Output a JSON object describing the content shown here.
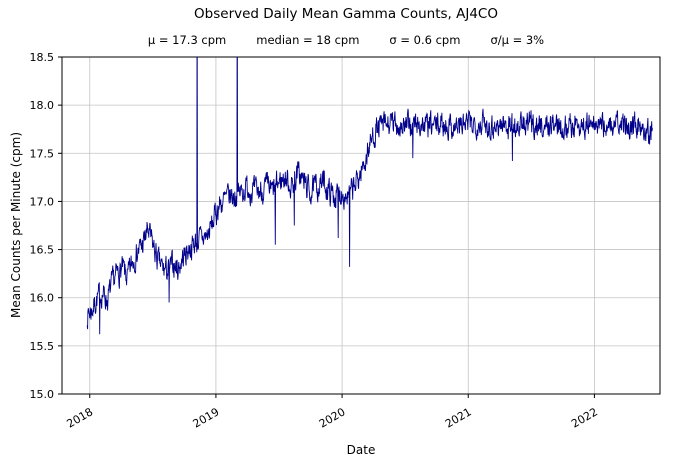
{
  "stats": {
    "mu": "μ = 17.3 cpm",
    "median": "median = 18 cpm",
    "sigma": "σ = 0.6 cpm",
    "ratio": "σ/μ = 3%"
  },
  "chart_data": {
    "type": "line",
    "title": "Observed Daily Mean Gamma Counts, AJ4CO",
    "subtitle": "μ = 17.3 cpm     median = 18 cpm     σ = 0.6 cpm     σ/μ = 3%",
    "xlabel": "Date",
    "ylabel": "Mean Counts per Minute (cpm)",
    "xlim": [
      2017.78,
      2022.52
    ],
    "ylim": [
      15.0,
      18.5
    ],
    "xticks": [
      2018,
      2019,
      2020,
      2021,
      2022
    ],
    "yticks": [
      15.0,
      15.5,
      16.0,
      16.5,
      17.0,
      17.5,
      18.0,
      18.5
    ],
    "grid": true,
    "legend": "none",
    "line_color": "#00008b",
    "grid_color": "#c4c4c4",
    "stats": {
      "mu_cpm": 17.3,
      "median_cpm": 18,
      "sigma_cpm": 0.6,
      "sigma_over_mu": "3%"
    },
    "series": [
      {
        "name": "AJ4CO observed daily mean gamma counts (cpm)",
        "anchors": [
          [
            2017.98,
            15.82
          ],
          [
            2018.02,
            15.88
          ],
          [
            2018.06,
            16.0
          ],
          [
            2018.1,
            16.05
          ],
          [
            2018.14,
            15.98
          ],
          [
            2018.18,
            16.15
          ],
          [
            2018.22,
            16.25
          ],
          [
            2018.26,
            16.3
          ],
          [
            2018.3,
            16.2
          ],
          [
            2018.34,
            16.38
          ],
          [
            2018.38,
            16.48
          ],
          [
            2018.42,
            16.55
          ],
          [
            2018.46,
            16.7
          ],
          [
            2018.5,
            16.55
          ],
          [
            2018.54,
            16.38
          ],
          [
            2018.58,
            16.3
          ],
          [
            2018.62,
            16.28
          ],
          [
            2018.66,
            16.35
          ],
          [
            2018.7,
            16.3
          ],
          [
            2018.74,
            16.42
          ],
          [
            2018.78,
            16.5
          ],
          [
            2018.82,
            16.55
          ],
          [
            2018.86,
            16.6
          ],
          [
            2018.9,
            16.62
          ],
          [
            2018.94,
            16.66
          ],
          [
            2018.98,
            16.8
          ],
          [
            2019.02,
            16.95
          ],
          [
            2019.06,
            17.0
          ],
          [
            2019.1,
            17.05
          ],
          [
            2019.15,
            17.05
          ],
          [
            2019.2,
            17.1
          ],
          [
            2019.25,
            17.15
          ],
          [
            2019.3,
            17.1
          ],
          [
            2019.35,
            17.1
          ],
          [
            2019.4,
            17.15
          ],
          [
            2019.45,
            17.1
          ],
          [
            2019.5,
            17.2
          ],
          [
            2019.55,
            17.25
          ],
          [
            2019.6,
            17.15
          ],
          [
            2019.65,
            17.3
          ],
          [
            2019.7,
            17.2
          ],
          [
            2019.75,
            17.1
          ],
          [
            2019.8,
            17.15
          ],
          [
            2019.85,
            17.2
          ],
          [
            2019.9,
            17.1
          ],
          [
            2019.95,
            17.05
          ],
          [
            2020.0,
            17.1
          ],
          [
            2020.05,
            17.05
          ],
          [
            2020.1,
            17.15
          ],
          [
            2020.15,
            17.3
          ],
          [
            2020.2,
            17.5
          ],
          [
            2020.25,
            17.7
          ],
          [
            2020.3,
            17.78
          ],
          [
            2020.4,
            17.8
          ],
          [
            2020.5,
            17.78
          ],
          [
            2020.6,
            17.8
          ],
          [
            2020.7,
            17.78
          ],
          [
            2020.8,
            17.8
          ],
          [
            2020.9,
            17.78
          ],
          [
            2021.0,
            17.8
          ],
          [
            2021.1,
            17.82
          ],
          [
            2021.2,
            17.78
          ],
          [
            2021.3,
            17.8
          ],
          [
            2021.4,
            17.78
          ],
          [
            2021.5,
            17.8
          ],
          [
            2021.6,
            17.78
          ],
          [
            2021.7,
            17.8
          ],
          [
            2021.8,
            17.78
          ],
          [
            2021.9,
            17.8
          ],
          [
            2022.0,
            17.78
          ],
          [
            2022.1,
            17.8
          ],
          [
            2022.2,
            17.78
          ],
          [
            2022.3,
            17.8
          ],
          [
            2022.4,
            17.78
          ],
          [
            2022.46,
            17.72
          ]
        ]
      }
    ],
    "spikes_up": [
      [
        2018.85,
        19.6
      ],
      [
        2019.17,
        19.6
      ]
    ],
    "spikes_down": [
      [
        2018.08,
        15.62
      ],
      [
        2018.63,
        15.95
      ],
      [
        2019.47,
        16.55
      ],
      [
        2019.62,
        16.75
      ],
      [
        2019.97,
        16.62
      ],
      [
        2020.06,
        16.32
      ],
      [
        2020.56,
        17.45
      ],
      [
        2021.35,
        17.42
      ],
      [
        2022.43,
        17.6
      ]
    ],
    "render": {
      "seed": 7,
      "noise": 0.11,
      "smooth": 0.5,
      "step_days": 1
    }
  }
}
